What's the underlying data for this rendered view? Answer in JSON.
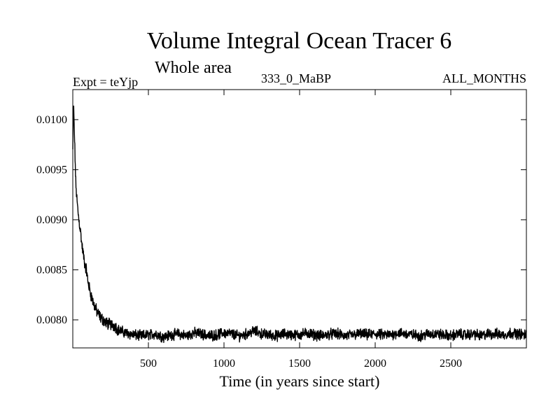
{
  "chart_data": {
    "type": "line",
    "title": "Volume Integral Ocean Tracer 6",
    "subtitle": "Whole area",
    "annotations": {
      "left": "Expt = teYjp",
      "center": "333_0_MaBP",
      "right": "ALL_MONTHS"
    },
    "xlabel": "Time (in years since start)",
    "ylabel": "",
    "xlim": [
      0,
      3000
    ],
    "ylim": [
      0.00772,
      0.0103
    ],
    "x_ticks": [
      500,
      1000,
      1500,
      2000,
      2500
    ],
    "x_tick_labels": [
      "500",
      "1000",
      "1500",
      "2000",
      "2500"
    ],
    "y_ticks": [
      0.008,
      0.0085,
      0.009,
      0.0095,
      0.01
    ],
    "y_tick_labels": [
      "0.0080",
      "0.0085",
      "0.0090",
      "0.0095",
      "0.0100"
    ],
    "grid": false,
    "series": [
      {
        "color": "#000000",
        "x": [
          0,
          5,
          10,
          20,
          30,
          40,
          50,
          60,
          70,
          80,
          90,
          100,
          120,
          140,
          160,
          180,
          200,
          220,
          240,
          260,
          280,
          300,
          350,
          400,
          450,
          500,
          550,
          600,
          650,
          700,
          750,
          800,
          850,
          900,
          950,
          1000,
          1050,
          1100,
          1150,
          1200,
          1250,
          1300,
          1350,
          1400,
          1450,
          1500,
          1550,
          1600,
          1650,
          1700,
          1750,
          1800,
          1850,
          1900,
          1950,
          2000,
          2050,
          2100,
          2150,
          2200,
          2250,
          2300,
          2350,
          2400,
          2450,
          2500,
          2550,
          2600,
          2650,
          2700,
          2750,
          2800,
          2850,
          2900,
          2950,
          3000
        ],
        "y": [
          0.0097,
          0.01015,
          0.0099,
          0.00935,
          0.00915,
          0.009,
          0.0089,
          0.00875,
          0.00865,
          0.00855,
          0.0085,
          0.00838,
          0.00825,
          0.00815,
          0.00808,
          0.00803,
          0.008,
          0.00797,
          0.00796,
          0.00795,
          0.00794,
          0.0079,
          0.00787,
          0.00785,
          0.00784,
          0.00785,
          0.00786,
          0.00783,
          0.00785,
          0.00786,
          0.00784,
          0.00787,
          0.00786,
          0.00784,
          0.00785,
          0.00787,
          0.00786,
          0.00784,
          0.00786,
          0.00789,
          0.00786,
          0.00785,
          0.00784,
          0.00786,
          0.00785,
          0.00785,
          0.00787,
          0.00785,
          0.00784,
          0.00786,
          0.00786,
          0.00784,
          0.00785,
          0.00786,
          0.00785,
          0.00786,
          0.00785,
          0.00785,
          0.00787,
          0.00786,
          0.00785,
          0.00784,
          0.00786,
          0.00786,
          0.00785,
          0.00784,
          0.00786,
          0.00785,
          0.00786,
          0.00784,
          0.00786,
          0.00786,
          0.00785,
          0.00787,
          0.00786,
          0.00785
        ]
      }
    ]
  }
}
